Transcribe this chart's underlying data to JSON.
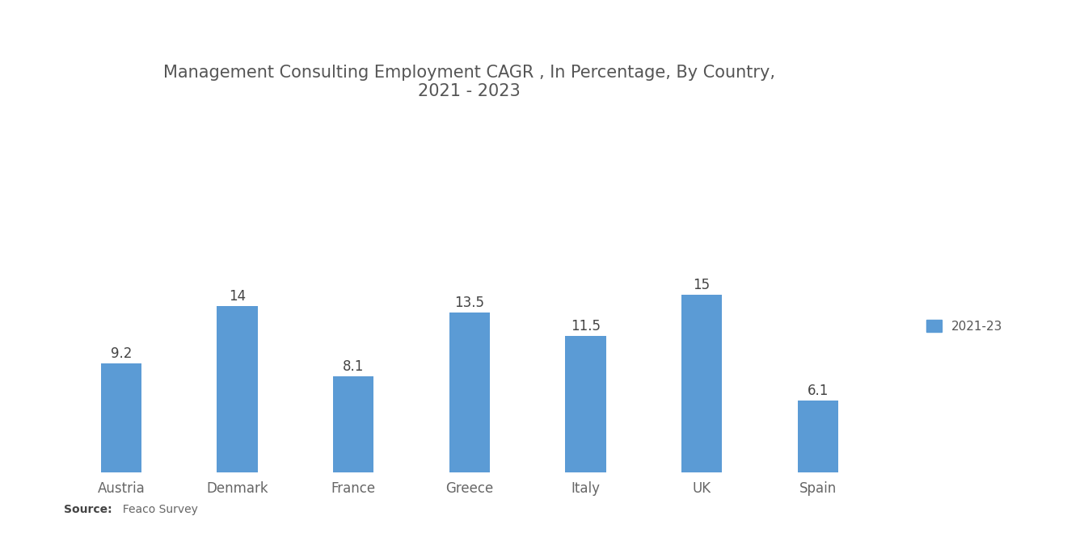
{
  "title": "Management Consulting Employment CAGR , In Percentage, By Country,\n2021 - 2023",
  "categories": [
    "Austria",
    "Denmark",
    "France",
    "Greece",
    "Italy",
    "UK",
    "Spain"
  ],
  "values": [
    9.2,
    14.0,
    8.1,
    13.5,
    11.5,
    15.0,
    6.1
  ],
  "bar_color": "#5B9BD5",
  "background_color": "#FFFFFF",
  "legend_label": "2021-23",
  "legend_color": "#5B9BD5",
  "source_bold": "Source:",
  "source_rest": "  Feaco Survey",
  "title_fontsize": 15,
  "tick_fontsize": 12,
  "value_fontsize": 12,
  "source_fontsize": 10,
  "legend_fontsize": 11,
  "ylim": [
    0,
    19
  ],
  "bar_width": 0.35
}
